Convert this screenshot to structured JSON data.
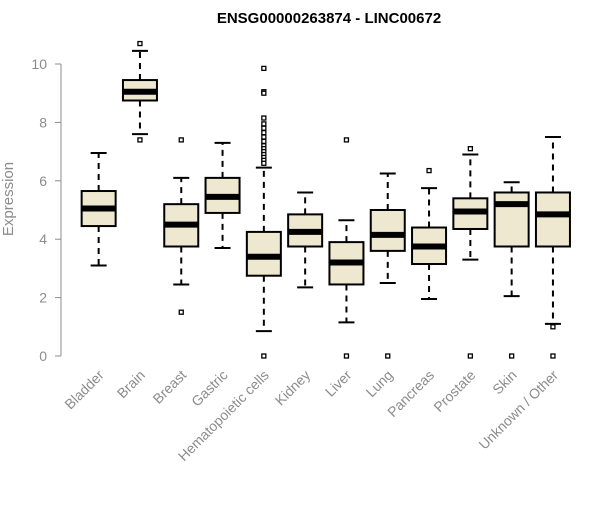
{
  "chart_data": {
    "type": "box",
    "title": "ENSG00000263874 - LINC00672",
    "xlabel": "",
    "ylabel": "Expression",
    "ylim": [
      0,
      10
    ],
    "yticks": [
      0,
      2,
      4,
      6,
      8,
      10
    ],
    "grid": false,
    "box_fill": "#efe8d0",
    "line_color": "#000000",
    "categories": [
      "Bladder",
      "Brain",
      "Breast",
      "Gastric",
      "Hematopoietic cells",
      "Kidney",
      "Liver",
      "Lung",
      "Pancreas",
      "Prostate",
      "Skin",
      "Unknown / Other"
    ],
    "boxes": [
      {
        "whisker_low": 3.1,
        "q1": 4.45,
        "median": 5.05,
        "q3": 5.65,
        "whisker_high": 6.95,
        "outliers": []
      },
      {
        "whisker_low": 7.6,
        "q1": 8.75,
        "median": 9.05,
        "q3": 9.45,
        "whisker_high": 10.45,
        "outliers": [
          7.4,
          10.7
        ]
      },
      {
        "whisker_low": 2.45,
        "q1": 3.75,
        "median": 4.5,
        "q3": 5.2,
        "whisker_high": 6.1,
        "outliers": [
          7.4,
          1.5
        ]
      },
      {
        "whisker_low": 3.7,
        "q1": 4.9,
        "median": 5.45,
        "q3": 6.1,
        "whisker_high": 7.3,
        "outliers": []
      },
      {
        "whisker_low": 0.85,
        "q1": 2.75,
        "median": 3.4,
        "q3": 4.25,
        "whisker_high": 6.45,
        "outliers": [
          9.85,
          9.05,
          9.0,
          8.15,
          7.95,
          7.8,
          7.65,
          7.5,
          7.35,
          7.2,
          7.1,
          7.0,
          6.9,
          6.8,
          6.7,
          6.6,
          0.0
        ]
      },
      {
        "whisker_low": 2.35,
        "q1": 3.75,
        "median": 4.25,
        "q3": 4.85,
        "whisker_high": 5.6,
        "outliers": []
      },
      {
        "whisker_low": 1.15,
        "q1": 2.45,
        "median": 3.2,
        "q3": 3.9,
        "whisker_high": 4.65,
        "outliers": [
          7.4,
          0.0
        ]
      },
      {
        "whisker_low": 2.5,
        "q1": 3.6,
        "median": 4.15,
        "q3": 5.0,
        "whisker_high": 6.25,
        "outliers": [
          0.0
        ]
      },
      {
        "whisker_low": 1.95,
        "q1": 3.15,
        "median": 3.75,
        "q3": 4.4,
        "whisker_high": 5.75,
        "outliers": [
          6.35
        ]
      },
      {
        "whisker_low": 3.3,
        "q1": 4.35,
        "median": 4.95,
        "q3": 5.4,
        "whisker_high": 6.9,
        "outliers": [
          7.1,
          0.0
        ]
      },
      {
        "whisker_low": 2.05,
        "q1": 3.75,
        "median": 5.2,
        "q3": 5.6,
        "whisker_high": 5.95,
        "outliers": [
          0.0
        ]
      },
      {
        "whisker_low": 1.1,
        "q1": 3.75,
        "median": 4.85,
        "q3": 5.6,
        "whisker_high": 7.5,
        "outliers": [
          1.0,
          0.0
        ]
      }
    ]
  }
}
